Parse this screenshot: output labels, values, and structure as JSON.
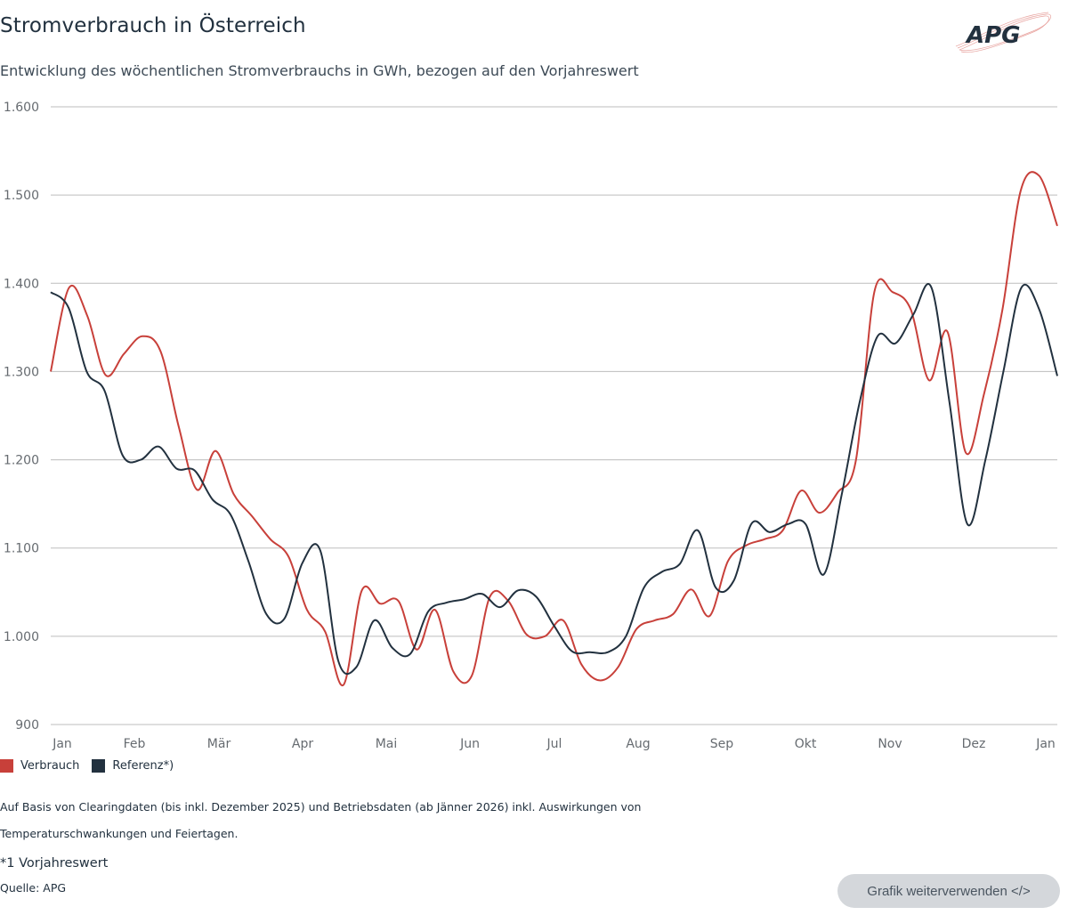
{
  "header": {
    "title": "Stromverbrauch in Österreich",
    "subtitle": "Entwicklung des wöchentlichen Stromverbrauchs in GWh, bezogen auf den Vorjahreswert",
    "logo_text": "APG"
  },
  "colors": {
    "verbrauch": "#c8403a",
    "referenz": "#22313f",
    "grid": "#bdbdbd",
    "button_bg": "#d4d7db"
  },
  "chart_data": {
    "type": "line",
    "title": "Stromverbrauch in Österreich",
    "subtitle": "Entwicklung des wöchentlichen Stromverbrauchs in GWh, bezogen auf den Vorjahreswert",
    "xlabel": "",
    "ylabel": "GWh",
    "ylim": [
      900,
      1600
    ],
    "yticks": [
      900,
      1000,
      1100,
      1200,
      1300,
      1400,
      1500,
      1600
    ],
    "ytick_labels": [
      "900",
      "1.000",
      "1.100",
      "1.200",
      "1.300",
      "1.400",
      "1.500",
      "1.600"
    ],
    "xtick_labels": [
      "Jan",
      "Feb",
      "Mär",
      "Apr",
      "Mai",
      "Jun",
      "Jul",
      "Aug",
      "Sep",
      "Okt",
      "Nov",
      "Dez",
      "Jan"
    ],
    "grid": true,
    "legend_position": "bottom-left",
    "series": [
      {
        "name": "Verbrauch",
        "values": [
          1300,
          1395,
          1363,
          1296,
          1320,
          1340,
          1323,
          1237,
          1166,
          1210,
          1161,
          1136,
          1110,
          1090,
          1030,
          1005,
          945,
          1052,
          1037,
          1040,
          985,
          1030,
          960,
          955,
          1045,
          1040,
          1002,
          1000,
          1018,
          968,
          950,
          965,
          1008,
          1018,
          1025,
          1053,
          1023,
          1085,
          1103,
          1110,
          1120,
          1165,
          1140,
          1163,
          1200,
          1390,
          1390,
          1370,
          1290,
          1345,
          1208,
          1275,
          1370,
          1505,
          1522,
          1465
        ]
      },
      {
        "name": "Referenz*)",
        "values": [
          1390,
          1372,
          1300,
          1278,
          1205,
          1200,
          1215,
          1190,
          1188,
          1155,
          1138,
          1085,
          1025,
          1020,
          1083,
          1097,
          972,
          965,
          1018,
          987,
          980,
          1028,
          1038,
          1042,
          1048,
          1033,
          1052,
          1045,
          1012,
          983,
          982,
          982,
          1000,
          1055,
          1073,
          1082,
          1120,
          1055,
          1063,
          1128,
          1118,
          1127,
          1127,
          1070,
          1160,
          1265,
          1340,
          1332,
          1365,
          1395,
          1265,
          1127,
          1200,
          1300,
          1395,
          1370,
          1295
        ]
      }
    ]
  },
  "legend": {
    "items": [
      {
        "label": "Verbrauch"
      },
      {
        "label": "Referenz*)"
      }
    ]
  },
  "notes": {
    "line1": "Auf Basis von Clearingdaten (bis inkl. Dezember 2025) und Betriebsdaten (ab Jänner  2026) inkl. Auswirkungen von",
    "line2": "Temperaturschwankungen und Feiertagen.",
    "footnote": "*1 Vorjahreswert",
    "source": "Quelle: APG"
  },
  "actions": {
    "reuse_label": "Grafik weiterverwenden </>"
  }
}
